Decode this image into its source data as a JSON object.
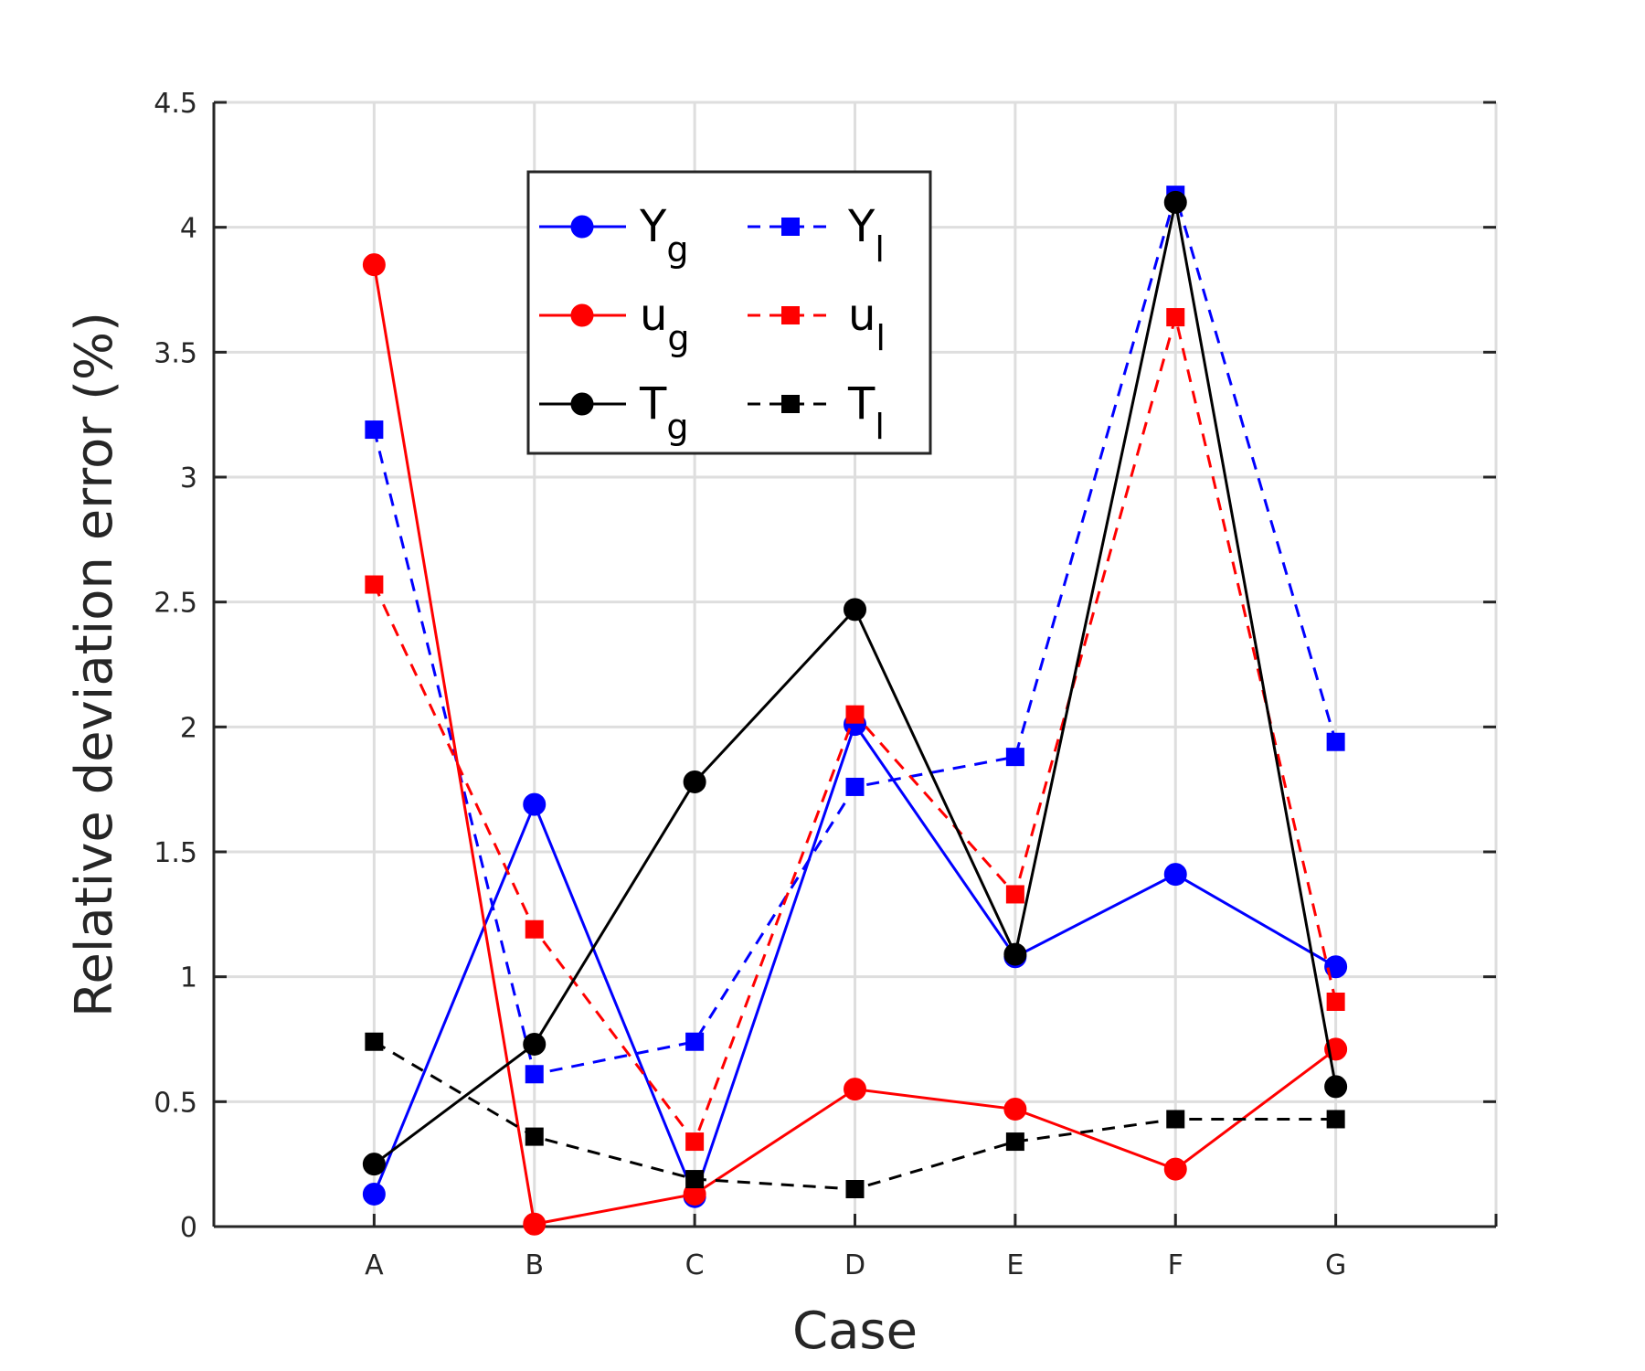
{
  "chart_data": {
    "type": "line",
    "xlabel": "Case",
    "ylabel": "Relative deviation error (%)",
    "categories": [
      "A",
      "B",
      "C",
      "D",
      "E",
      "F",
      "G"
    ],
    "ylim": [
      0,
      4.5
    ],
    "xlim": [
      0,
      8
    ],
    "yticks": [
      "0",
      "0.5",
      "1",
      "1.5",
      "2",
      "2.5",
      "3",
      "3.5",
      "4",
      "4.5"
    ],
    "grid": true,
    "legend_position": "top-center",
    "series": [
      {
        "base": "Y",
        "sub": "g",
        "color": "#0000ff",
        "line": "solid",
        "marker": "circle",
        "values": [
          0.13,
          1.69,
          0.12,
          2.01,
          1.08,
          1.41,
          1.04
        ]
      },
      {
        "base": "Y",
        "sub": "l",
        "color": "#0000ff",
        "line": "dashed",
        "marker": "square",
        "values": [
          3.19,
          0.61,
          0.74,
          1.76,
          1.88,
          4.13,
          1.94
        ]
      },
      {
        "base": "u",
        "sub": "g",
        "color": "#ff0000",
        "line": "solid",
        "marker": "circle",
        "values": [
          3.85,
          0.01,
          0.13,
          0.55,
          0.47,
          0.23,
          0.71
        ]
      },
      {
        "base": "u",
        "sub": "l",
        "color": "#ff0000",
        "line": "dashed",
        "marker": "square",
        "values": [
          2.57,
          1.19,
          0.34,
          2.05,
          1.33,
          3.64,
          0.9
        ]
      },
      {
        "base": "T",
        "sub": "g",
        "color": "#000000",
        "line": "solid",
        "marker": "circle",
        "values": [
          0.25,
          0.73,
          1.78,
          2.47,
          1.09,
          4.1,
          0.56
        ]
      },
      {
        "base": "T",
        "sub": "l",
        "color": "#000000",
        "line": "dashed",
        "marker": "square",
        "values": [
          0.74,
          0.36,
          0.19,
          0.15,
          0.34,
          0.43,
          0.43
        ]
      }
    ]
  }
}
